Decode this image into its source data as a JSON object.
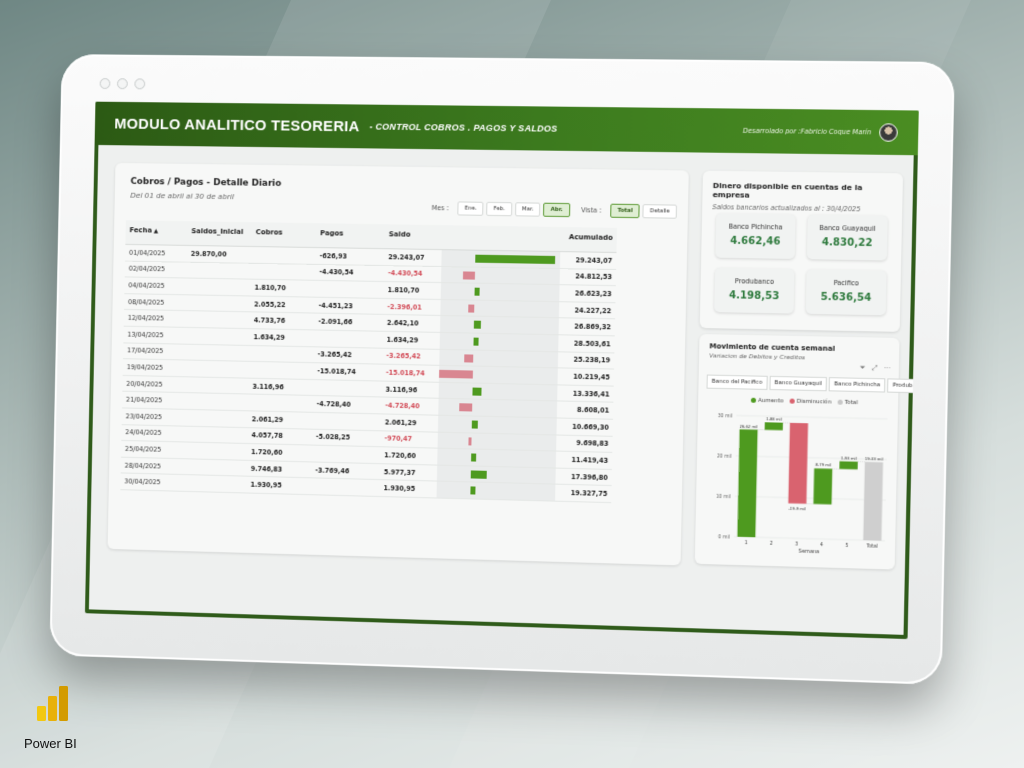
{
  "header": {
    "title": "MODULO ANALITICO TESORERIA",
    "subtitle": "- CONTROL COBROS . PAGOS Y SALDOS",
    "developer": "Desarrolado por :Fabricio Coque Marín"
  },
  "detail": {
    "title": "Cobros / Pagos - Detalle Diario",
    "subtitle": "Del 01 de abril al 30 de abril",
    "mes_label": "Mes :",
    "months": [
      "Ene.",
      "Feb.",
      "Mar.",
      "Abr."
    ],
    "active_month": "Abr.",
    "vista_label": "Vista :",
    "views": [
      "Total",
      "Detalle"
    ],
    "active_view": "Total",
    "columns": [
      "Fecha",
      "Saldos_Inicial",
      "Cobros",
      "Pagos",
      "Saldo",
      "Acumulado"
    ],
    "rows": [
      {
        "fecha": "01/04/2025",
        "saldo_inicial": "29.870,00",
        "cobros": "",
        "pagos": "-626,93",
        "saldo": "29.243,07",
        "saldo_value": 29243.07,
        "acumulado": "29.243,07"
      },
      {
        "fecha": "02/04/2025",
        "saldo_inicial": "",
        "cobros": "",
        "pagos": "-4.430,54",
        "saldo": "-4.430,54",
        "saldo_value": -4430.54,
        "acumulado": "24.812,53"
      },
      {
        "fecha": "04/04/2025",
        "saldo_inicial": "",
        "cobros": "1.810,70",
        "pagos": "",
        "saldo": "1.810,70",
        "saldo_value": 1810.7,
        "acumulado": "26.623,23"
      },
      {
        "fecha": "08/04/2025",
        "saldo_inicial": "",
        "cobros": "2.055,22",
        "pagos": "-4.451,23",
        "saldo": "-2.396,01",
        "saldo_value": -2396.01,
        "acumulado": "24.227,22"
      },
      {
        "fecha": "12/04/2025",
        "saldo_inicial": "",
        "cobros": "4.733,76",
        "pagos": "-2.091,66",
        "saldo": "2.642,10",
        "saldo_value": 2642.1,
        "acumulado": "26.869,32"
      },
      {
        "fecha": "13/04/2025",
        "saldo_inicial": "",
        "cobros": "1.634,29",
        "pagos": "",
        "saldo": "1.634,29",
        "saldo_value": 1634.29,
        "acumulado": "28.503,61"
      },
      {
        "fecha": "17/04/2025",
        "saldo_inicial": "",
        "cobros": "",
        "pagos": "-3.265,42",
        "saldo": "-3.265,42",
        "saldo_value": -3265.42,
        "acumulado": "25.238,19"
      },
      {
        "fecha": "19/04/2025",
        "saldo_inicial": "",
        "cobros": "",
        "pagos": "-15.018,74",
        "saldo": "-15.018,74",
        "saldo_value": -15018.74,
        "acumulado": "10.219,45"
      },
      {
        "fecha": "20/04/2025",
        "saldo_inicial": "",
        "cobros": "3.116,96",
        "pagos": "",
        "saldo": "3.116,96",
        "saldo_value": 3116.96,
        "acumulado": "13.336,41"
      },
      {
        "fecha": "21/04/2025",
        "saldo_inicial": "",
        "cobros": "",
        "pagos": "-4.728,40",
        "saldo": "-4.728,40",
        "saldo_value": -4728.4,
        "acumulado": "8.608,01"
      },
      {
        "fecha": "23/04/2025",
        "saldo_inicial": "",
        "cobros": "2.061,29",
        "pagos": "",
        "saldo": "2.061,29",
        "saldo_value": 2061.29,
        "acumulado": "10.669,30"
      },
      {
        "fecha": "24/04/2025",
        "saldo_inicial": "",
        "cobros": "4.057,78",
        "pagos": "-5.028,25",
        "saldo": "-970,47",
        "saldo_value": -970.47,
        "acumulado": "9.698,83"
      },
      {
        "fecha": "25/04/2025",
        "saldo_inicial": "",
        "cobros": "1.720,60",
        "pagos": "",
        "saldo": "1.720,60",
        "saldo_value": 1720.6,
        "acumulado": "11.419,43"
      },
      {
        "fecha": "28/04/2025",
        "saldo_inicial": "",
        "cobros": "9.746,83",
        "pagos": "-3.769,46",
        "saldo": "5.977,37",
        "saldo_value": 5977.37,
        "acumulado": "17.396,80"
      },
      {
        "fecha": "30/04/2025",
        "saldo_inicial": "",
        "cobros": "1.930,95",
        "pagos": "",
        "saldo": "1.930,95",
        "saldo_value": 1930.95,
        "acumulado": "19.327,75"
      }
    ]
  },
  "banks": {
    "title": "Dinero disponible en cuentas de la empresa",
    "subtitle": "Saldos bancarios actualizados al : 30/4/2025",
    "items": [
      {
        "name": "Banco Pichincha",
        "value": "4.662,46"
      },
      {
        "name": "Banco Guayaquil",
        "value": "4.830,22"
      },
      {
        "name": "Produbanco",
        "value": "4.198,53"
      },
      {
        "name": "Pacifico",
        "value": "5.636,54"
      }
    ]
  },
  "weekly": {
    "title": "Movimiento de cuenta semanal",
    "subtitle": "Variacion de Debitos y Creditos",
    "tabs": [
      "Banco del Pacifico",
      "Banco Guayaquil",
      "Banco Pichincha",
      "Produbanco"
    ],
    "legend": [
      {
        "label": "Aumento",
        "color": "#4e9a1f"
      },
      {
        "label": "Disminución",
        "color": "#d9636f"
      },
      {
        "label": "Total",
        "color": "#c8c8c8"
      }
    ]
  },
  "chart_data": {
    "type": "waterfall",
    "xlabel": "Semana",
    "categories": [
      "1",
      "2",
      "3",
      "4",
      "5",
      "Total"
    ],
    "steps": [
      {
        "category": "1",
        "kind": "increase",
        "start": 0,
        "end": 26.62,
        "label": "26,62 mil"
      },
      {
        "category": "2",
        "kind": "increase",
        "start": 26.62,
        "end": 28.5,
        "label": "1,88 mil"
      },
      {
        "category": "3",
        "kind": "decrease",
        "start": 28.5,
        "end": 8.61,
        "label": "-19,9 mil"
      },
      {
        "category": "4",
        "kind": "increase",
        "start": 8.61,
        "end": 17.4,
        "label": "8,79 mil"
      },
      {
        "category": "5",
        "kind": "increase",
        "start": 17.4,
        "end": 19.33,
        "label": "1,93 mil"
      },
      {
        "category": "Total",
        "kind": "total",
        "start": 0,
        "end": 19.33,
        "label": "19,33 mil"
      }
    ],
    "yticks": [
      "0 mil",
      "10 mil",
      "20 mil",
      "30 mil"
    ],
    "ylim": [
      0,
      30
    ],
    "colors": {
      "increase": "#4e9a1f",
      "decrease": "#d9636f",
      "total": "#cfcfcf"
    }
  },
  "branding": {
    "label": "Power BI"
  }
}
